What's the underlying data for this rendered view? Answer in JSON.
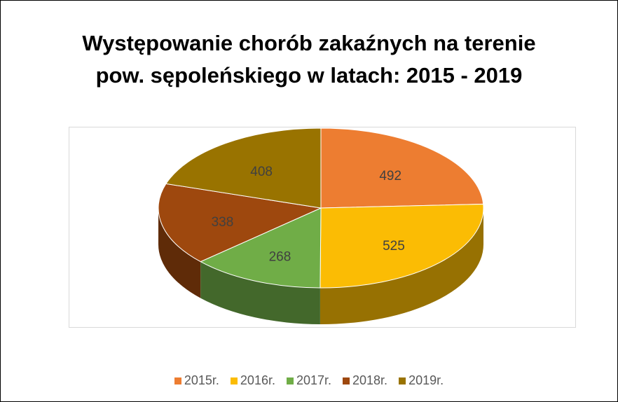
{
  "chart_data": {
    "type": "pie3d",
    "title": "Występowanie chorób zakaźnych na terenie pow. sępoleńskiego w latach: 2015 - 2019",
    "categories": [
      "2015r.",
      "2016r.",
      "2017r.",
      "2018r.",
      "2019r."
    ],
    "values": [
      492,
      525,
      268,
      338,
      408
    ],
    "colors": [
      "#ed7d31",
      "#fbbc04",
      "#70ad47",
      "#9e480e",
      "#997300"
    ],
    "legend": "bottom"
  }
}
